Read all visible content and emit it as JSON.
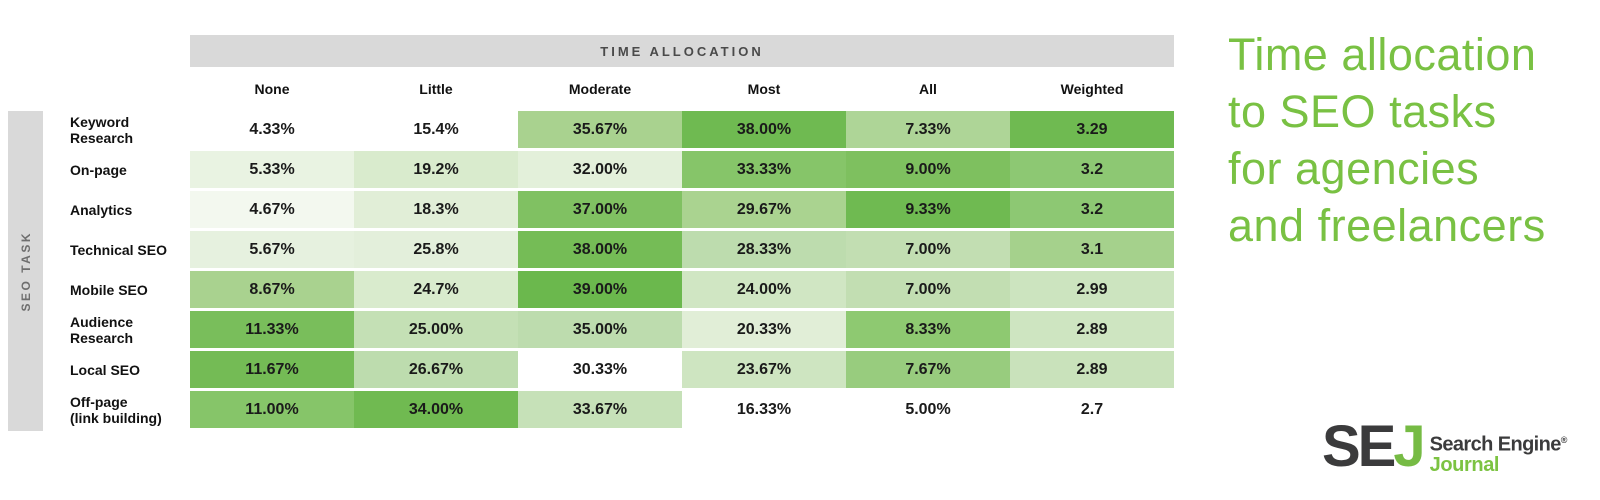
{
  "infographic_title": {
    "lines": [
      "Time allocation",
      "to SEO tasks",
      "for agencies",
      "and freelancers"
    ],
    "color": "#79c143"
  },
  "table_header": {
    "label": "TIME ALLOCATION",
    "bg": "#d9d9d9"
  },
  "axis": {
    "row_axis_label": "SEO TASK"
  },
  "chart_data": {
    "type": "heatmap",
    "title": "TIME ALLOCATION",
    "row_axis_label": "SEO TASK",
    "columns": [
      "None",
      "Little",
      "Moderate",
      "Most",
      "All",
      "Weighted"
    ],
    "rows": [
      "Keyword Research",
      "On-page",
      "Analytics",
      "Technical SEO",
      "Mobile SEO",
      "Audience Research",
      "Local SEO",
      "Off-page (link building)"
    ],
    "row_display": [
      "Keyword\nResearch",
      "On-page",
      "Analytics",
      "Technical SEO",
      "Mobile SEO",
      "Audience\nResearch",
      "Local SEO",
      "Off-page\n(link building)"
    ],
    "cells": [
      [
        "4.33%",
        "15.4%",
        "35.67%",
        "38.00%",
        "7.33%",
        "3.29"
      ],
      [
        "5.33%",
        "19.2%",
        "32.00%",
        "33.33%",
        "9.00%",
        "3.2"
      ],
      [
        "4.67%",
        "18.3%",
        "37.00%",
        "29.67%",
        "9.33%",
        "3.2"
      ],
      [
        "5.67%",
        "25.8%",
        "38.00%",
        "28.33%",
        "7.00%",
        "3.1"
      ],
      [
        "8.67%",
        "24.7%",
        "39.00%",
        "24.00%",
        "7.00%",
        "2.99"
      ],
      [
        "11.33%",
        "25.00%",
        "35.00%",
        "20.33%",
        "8.33%",
        "2.89"
      ],
      [
        "11.67%",
        "26.67%",
        "30.33%",
        "23.67%",
        "7.67%",
        "2.89"
      ],
      [
        "11.00%",
        "34.00%",
        "33.67%",
        "16.33%",
        "5.00%",
        "2.7"
      ]
    ],
    "values": [
      [
        4.33,
        15.4,
        35.67,
        38.0,
        7.33,
        3.29
      ],
      [
        5.33,
        19.2,
        32.0,
        33.33,
        9.0,
        3.2
      ],
      [
        4.67,
        18.3,
        37.0,
        29.67,
        9.33,
        3.2
      ],
      [
        5.67,
        25.8,
        38.0,
        28.33,
        7.0,
        3.1
      ],
      [
        8.67,
        24.7,
        39.0,
        24.0,
        7.0,
        2.99
      ],
      [
        11.33,
        25.0,
        35.0,
        20.33,
        8.33,
        2.89
      ],
      [
        11.67,
        26.67,
        30.33,
        23.67,
        7.67,
        2.89
      ],
      [
        11.0,
        34.0,
        33.67,
        16.33,
        5.0,
        2.7
      ]
    ],
    "cell_colors": [
      [
        "#ffffff",
        "#ffffff",
        "#a9d28f",
        "#6fba51",
        "#aed597",
        "#6fba51"
      ],
      [
        "#e9f3e2",
        "#d9ebcd",
        "#e3f0da",
        "#86c569",
        "#7ec05f",
        "#8dc873"
      ],
      [
        "#f3f8ef",
        "#e1eed7",
        "#80c162",
        "#aad390",
        "#6fba51",
        "#8dc873"
      ],
      [
        "#e6f1df",
        "#e3efdb",
        "#75bc56",
        "#bddcae",
        "#c2deb2",
        "#a5d18c"
      ],
      [
        "#a9d28f",
        "#d9ebcd",
        "#6bb84d",
        "#d0e6c3",
        "#c2deb2",
        "#cce4bf"
      ],
      [
        "#79be5b",
        "#c4e0b5",
        "#bddcae",
        "#e1eed7",
        "#8ec971",
        "#cee5c1"
      ],
      [
        "#74bb55",
        "#bddcae",
        "#ffffff",
        "#cee5c1",
        "#98cc7e",
        "#c9e2bb"
      ],
      [
        "#86c569",
        "#70ba51",
        "#c6e1b8",
        "#ffffff",
        "#ffffff",
        "#ffffff"
      ]
    ],
    "color_scale": {
      "low": "#ffffff",
      "high": "#6bb84d",
      "normalize": "per-column"
    },
    "layout": {
      "grid": false,
      "legend": "none",
      "header_bg": "#d9d9d9",
      "row_gap_color": "#ffffff"
    }
  },
  "logo": {
    "initials_dark": "SE",
    "initials_green": "J",
    "name_line1": "Search Engine",
    "registered_mark": "®",
    "name_line2": "Journal",
    "dark_color": "#3b3b3c",
    "green_color": "#7cc342"
  }
}
